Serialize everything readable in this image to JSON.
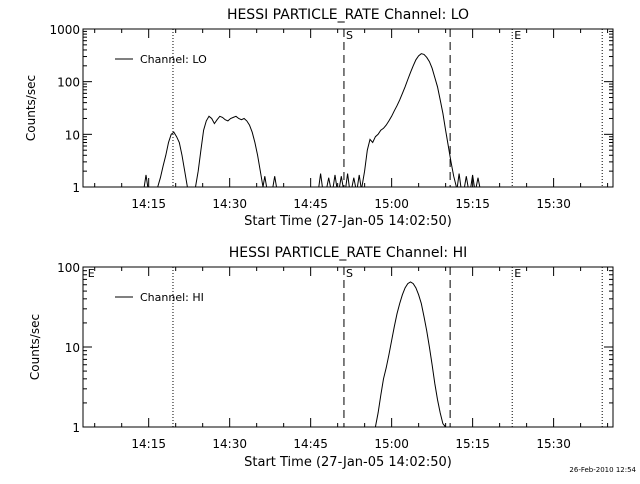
{
  "footer": {
    "timestamp": "26-Feb-2010 12:54"
  },
  "chart_data": [
    {
      "type": "line",
      "title": "HESSI PARTICLE_RATE Channel: LO",
      "xlabel": "Start Time (27-Jan-05 14:02:50)",
      "ylabel": "Counts/sec",
      "yscale": "log",
      "ylim": [
        1,
        1000
      ],
      "xlim": [
        "14:02:50",
        "15:41:00"
      ],
      "xticks": [
        "14:15",
        "14:30",
        "14:45",
        "15:00",
        "15:15",
        "15:30"
      ],
      "yticks": [
        "1",
        "10",
        "100",
        "1000"
      ],
      "legend": {
        "placement": "top-left",
        "entries": [
          "Channel: LO"
        ]
      },
      "markers": [
        {
          "time": "14:19:30",
          "style": "dotted",
          "label": ""
        },
        {
          "time": "14:51:10",
          "style": "dashed",
          "label": "S"
        },
        {
          "time": "15:10:50",
          "style": "dashed",
          "label": ""
        },
        {
          "time": "15:22:20",
          "style": "dotted",
          "label": "E"
        },
        {
          "time": "15:39:00",
          "style": "dotted",
          "label": ""
        }
      ],
      "series": [
        {
          "name": "Channel: LO",
          "segments": [
            {
              "times": [
                "14:14:10",
                "14:14:30",
                "14:14:50"
              ],
              "values": [
                1,
                1.7,
                1
              ]
            },
            {
              "times": [
                "14:16:40",
                "14:17:10",
                "14:17:40",
                "14:18:10",
                "14:18:40",
                "14:19:10",
                "14:19:40",
                "14:20:10",
                "14:20:40",
                "14:21:10",
                "14:21:40",
                "14:22:10"
              ],
              "values": [
                1,
                1.5,
                2.5,
                4,
                7,
                10,
                11,
                9,
                7,
                4,
                2,
                1
              ]
            },
            {
              "times": [
                "14:23:40",
                "14:24:10",
                "14:24:40",
                "14:25:10",
                "14:25:40",
                "14:26:10",
                "14:26:40",
                "14:27:10",
                "14:27:40",
                "14:28:10",
                "14:28:40",
                "14:29:10",
                "14:29:40",
                "14:30:10",
                "14:30:40",
                "14:31:10",
                "14:31:40",
                "14:32:10",
                "14:32:40",
                "14:33:10",
                "14:33:40",
                "14:34:10",
                "14:34:40",
                "14:35:10",
                "14:35:40",
                "14:36:10"
              ],
              "values": [
                1,
                2,
                5,
                12,
                18,
                22,
                20,
                16,
                19,
                22,
                21,
                19,
                18,
                20,
                21,
                22,
                20,
                19,
                20,
                18,
                15,
                11,
                7,
                4,
                2,
                1
              ]
            },
            {
              "times": [
                "14:36:10",
                "14:36:30",
                "14:36:50"
              ],
              "values": [
                1,
                1.6,
                1
              ]
            },
            {
              "times": [
                "14:38:00",
                "14:38:20",
                "14:38:40"
              ],
              "values": [
                1,
                1.6,
                1
              ]
            },
            {
              "times": [
                "14:46:30",
                "14:46:50",
                "14:47:10"
              ],
              "values": [
                1,
                1.8,
                1
              ]
            },
            {
              "times": [
                "14:48:00",
                "14:48:20",
                "14:48:40"
              ],
              "values": [
                1,
                1.5,
                1
              ]
            },
            {
              "times": [
                "14:49:10",
                "14:49:30",
                "14:49:50"
              ],
              "values": [
                1,
                1.7,
                1
              ]
            },
            {
              "times": [
                "14:50:20",
                "14:50:40",
                "14:51:00"
              ],
              "values": [
                1,
                1.6,
                1
              ]
            },
            {
              "times": [
                "14:51:30",
                "14:51:50",
                "14:52:10"
              ],
              "values": [
                1,
                1.8,
                1
              ]
            },
            {
              "times": [
                "14:52:40",
                "14:53:00",
                "14:53:20"
              ],
              "values": [
                1,
                1.5,
                1
              ]
            },
            {
              "times": [
                "14:53:40",
                "14:54:00",
                "14:54:20"
              ],
              "values": [
                1,
                1.7,
                1
              ]
            },
            {
              "times": [
                "14:54:30",
                "14:55:00",
                "14:55:30",
                "14:56:00",
                "14:56:30",
                "14:57:00",
                "14:57:30",
                "14:58:00",
                "14:58:30",
                "14:59:00",
                "14:59:30",
                "15:00:00",
                "15:00:30",
                "15:01:00",
                "15:01:30",
                "15:02:00",
                "15:02:30",
                "15:03:00",
                "15:03:30",
                "15:04:00",
                "15:04:30",
                "15:05:00",
                "15:05:30",
                "15:06:00",
                "15:06:30",
                "15:07:00",
                "15:07:30",
                "15:08:00",
                "15:08:30",
                "15:09:00",
                "15:09:30",
                "15:10:00",
                "15:10:30",
                "15:11:00",
                "15:11:30",
                "15:12:00"
              ],
              "values": [
                1,
                2,
                5,
                8,
                7,
                9,
                10,
                12,
                13,
                15,
                18,
                22,
                28,
                35,
                45,
                60,
                80,
                110,
                150,
                200,
                260,
                310,
                340,
                330,
                290,
                240,
                180,
                120,
                80,
                45,
                25,
                12,
                6,
                3,
                1.6,
                1
              ]
            },
            {
              "times": [
                "15:12:10",
                "15:12:30",
                "15:12:50"
              ],
              "values": [
                1,
                1.8,
                1
              ]
            },
            {
              "times": [
                "15:13:30",
                "15:13:50",
                "15:14:10"
              ],
              "values": [
                1,
                1.6,
                1
              ]
            },
            {
              "times": [
                "15:14:40",
                "15:15:00",
                "15:15:20"
              ],
              "values": [
                1,
                1.7,
                1
              ]
            },
            {
              "times": [
                "15:15:40",
                "15:16:00",
                "15:16:20"
              ],
              "values": [
                1,
                1.5,
                1
              ]
            }
          ]
        }
      ]
    },
    {
      "type": "line",
      "title": "HESSI PARTICLE_RATE Channel: HI",
      "xlabel": "Start Time (27-Jan-05 14:02:50)",
      "ylabel": "Counts/sec",
      "yscale": "log",
      "ylim": [
        1,
        100
      ],
      "xlim": [
        "14:02:50",
        "15:41:00"
      ],
      "xticks": [
        "14:15",
        "14:30",
        "14:45",
        "15:00",
        "15:15",
        "15:30"
      ],
      "yticks": [
        "1",
        "10",
        "100"
      ],
      "legend": {
        "placement": "top-left",
        "entries": [
          "Channel: HI"
        ]
      },
      "markers": [
        {
          "time": "14:03:20",
          "style": "none",
          "label": "E"
        },
        {
          "time": "14:19:30",
          "style": "dotted",
          "label": ""
        },
        {
          "time": "14:51:10",
          "style": "dashed",
          "label": "S"
        },
        {
          "time": "15:10:50",
          "style": "dashed",
          "label": ""
        },
        {
          "time": "15:22:20",
          "style": "dotted",
          "label": "E"
        },
        {
          "time": "15:39:00",
          "style": "dotted",
          "label": ""
        }
      ],
      "series": [
        {
          "name": "Channel: HI",
          "segments": [
            {
              "times": [
                "14:57:00",
                "14:57:30",
                "14:58:00",
                "14:58:30",
                "14:59:00",
                "14:59:30",
                "15:00:00",
                "15:00:30",
                "15:01:00",
                "15:01:30",
                "15:02:00",
                "15:02:30",
                "15:03:00",
                "15:03:30",
                "15:04:00",
                "15:04:30",
                "15:05:00",
                "15:05:30",
                "15:06:00",
                "15:06:30",
                "15:07:00",
                "15:07:30",
                "15:08:00",
                "15:08:30",
                "15:09:00",
                "15:09:30",
                "15:10:00"
              ],
              "values": [
                1,
                1.5,
                2.5,
                4,
                5.5,
                8,
                12,
                18,
                26,
                35,
                45,
                55,
                62,
                65,
                62,
                55,
                45,
                35,
                24,
                16,
                10,
                6,
                3.5,
                2.2,
                1.5,
                1.1,
                1
              ]
            }
          ]
        }
      ]
    }
  ]
}
